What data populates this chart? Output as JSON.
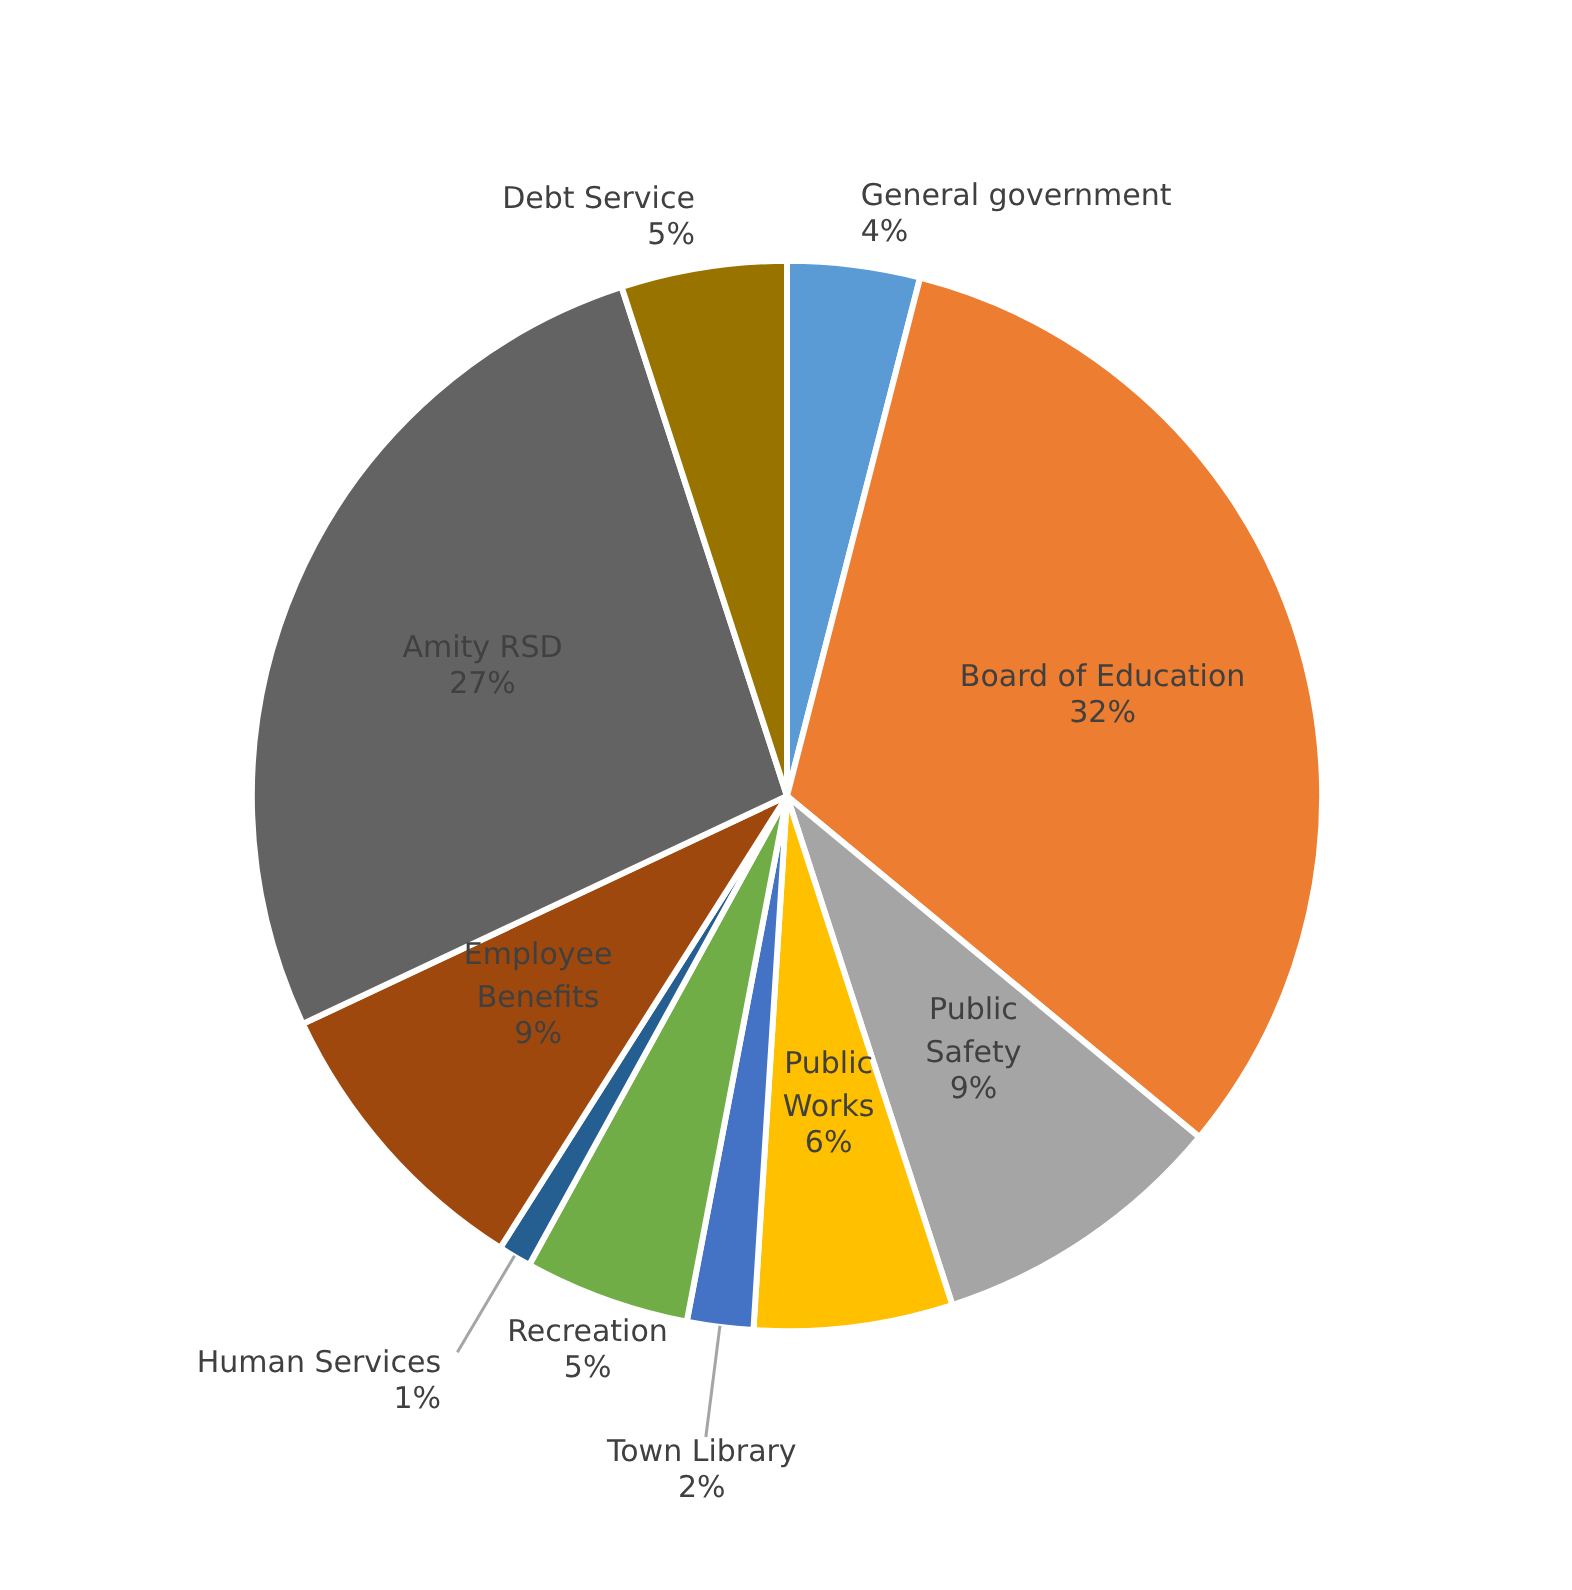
{
  "chart_data": {
    "type": "pie",
    "categories": [
      "General government",
      "Board of Education",
      "Public Safety",
      "Public Works",
      "Town Library",
      "Recreation",
      "Human Services",
      "Employee Benefits",
      "Amity RSD",
      "Debt Service"
    ],
    "values": [
      4,
      32,
      9,
      6,
      2,
      5,
      1,
      9,
      27,
      5
    ],
    "value_labels": [
      "4%",
      "32%",
      "9%",
      "6%",
      "2%",
      "5%",
      "1%",
      "9%",
      "27%",
      "5%"
    ],
    "colors": [
      "#5b9bd5",
      "#ed7d31",
      "#a5a5a5",
      "#ffc000",
      "#4472c4",
      "#70ad47",
      "#255e91",
      "#9e480e",
      "#636363",
      "#997300"
    ]
  }
}
